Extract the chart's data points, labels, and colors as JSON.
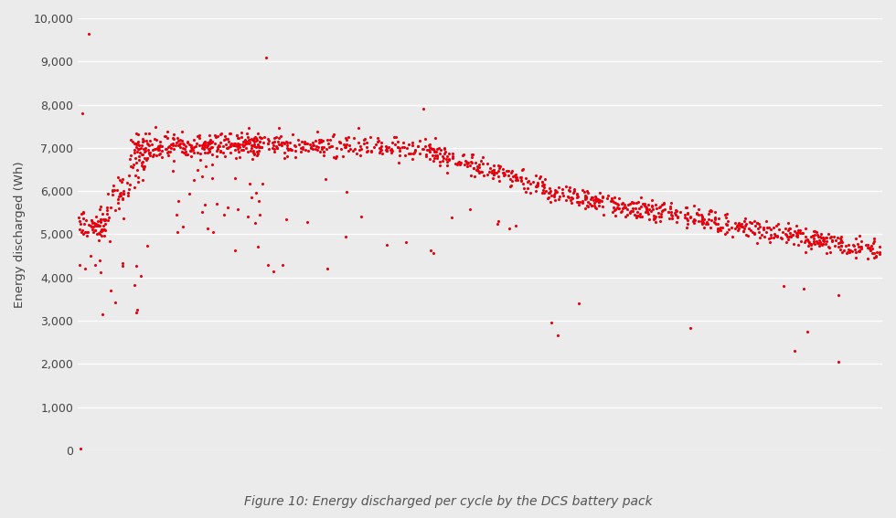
{
  "caption": "Figure 10: Energy discharged per cycle by the DCS battery pack",
  "ylabel": "Energy discharged (Wh)",
  "ylim": [
    0,
    10000
  ],
  "yticks": [
    0,
    1000,
    2000,
    3000,
    4000,
    5000,
    6000,
    7000,
    8000,
    9000,
    10000
  ],
  "dot_color": "#e8000d",
  "dot_size": 5,
  "bg_color": "#ebebeb",
  "grid_color": "#ffffff",
  "seed": 12345,
  "xlim": [
    0,
    920
  ]
}
